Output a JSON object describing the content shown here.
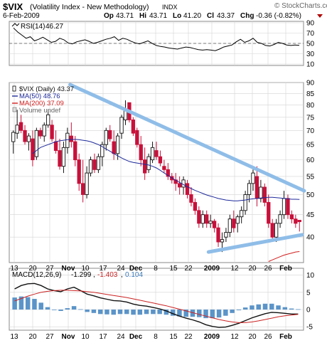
{
  "header": {
    "symbol": "$VIX",
    "name": "(Volatility Index - New Methodology)",
    "exchange": "INDX",
    "date": "6-Feb-2009",
    "op_label": "Op",
    "op": "43.71",
    "hi_label": "Hi",
    "hi": "43.71",
    "lo_label": "Lo",
    "lo": "41.20",
    "cl_label": "Cl",
    "cl": "43.37",
    "chg_label": "Chg",
    "chg": "-0.36 (-0.82%)",
    "brand": "© StockCharts.com"
  },
  "colors": {
    "up": "#111111",
    "down": "#c8103a",
    "ma50": "#1e2a9a",
    "ma200": "#d21c1c",
    "trend": "#8fbde8",
    "macd": "#111111",
    "signal": "#cc2222",
    "hist": "#5b94c8",
    "grid": "#d4d4d4",
    "panel_border": "#888888"
  },
  "rsi": {
    "label": "RSI(14)",
    "value": "46.27",
    "ticks": [
      "90",
      "70",
      "50",
      "30",
      "10"
    ],
    "legend_icon": "rsi-line-icon"
  },
  "price": {
    "legend": [
      {
        "text": "$VIX (Daily) 43.37",
        "color": "#111111",
        "kind": "candle"
      },
      {
        "text": "MA(50) 48.76",
        "color": "#1e2a9a",
        "kind": "line"
      },
      {
        "text": "MA(200) 37.09",
        "color": "#d21c1c",
        "kind": "line"
      },
      {
        "text": "Volume undef",
        "color": "#666666",
        "kind": "box"
      }
    ]
  },
  "macd": {
    "label": "MACD(12,26,9)",
    "macd_value": "-1.299",
    "signal_value": "-1.403",
    "hist_value": "0.104",
    "ticks": [
      "10",
      "5",
      "0",
      "-5"
    ]
  },
  "x_axis": {
    "labels": [
      "13",
      "20",
      "27",
      "Nov",
      "10",
      "17",
      "24",
      "Dec",
      "8",
      "15",
      "22",
      "2009",
      "12",
      "20",
      "26",
      "Feb"
    ]
  },
  "chart_data": {
    "type": "candlestick",
    "title": "$VIX (Volatility Index - New Methodology) INDX",
    "date": "6-Feb-2009",
    "ylim": [
      35,
      90
    ],
    "y_ticks": [
      40,
      45,
      50,
      55,
      60,
      65,
      70,
      75,
      80,
      85,
      90
    ],
    "y_scale": "log",
    "x_labels": [
      "13",
      "20",
      "27",
      "Nov",
      "10",
      "17",
      "24",
      "Dec",
      "8",
      "15",
      "22",
      "2009",
      "12",
      "20",
      "26",
      "Feb"
    ],
    "candles": [
      {
        "o": 66,
        "h": 70,
        "l": 62,
        "c": 69.3
      },
      {
        "o": 69,
        "h": 78,
        "l": 67,
        "c": 72
      },
      {
        "o": 73,
        "h": 76,
        "l": 69,
        "c": 70
      },
      {
        "o": 70,
        "h": 72,
        "l": 65,
        "c": 66
      },
      {
        "o": 66,
        "h": 69,
        "l": 63,
        "c": 68
      },
      {
        "o": 67,
        "h": 70,
        "l": 58,
        "c": 60
      },
      {
        "o": 61,
        "h": 71,
        "l": 60,
        "c": 70
      },
      {
        "o": 70,
        "h": 71,
        "l": 67,
        "c": 68
      },
      {
        "o": 68,
        "h": 73,
        "l": 66,
        "c": 72
      },
      {
        "o": 72,
        "h": 78,
        "l": 71,
        "c": 76
      },
      {
        "o": 72,
        "h": 74,
        "l": 66,
        "c": 67
      },
      {
        "o": 66,
        "h": 70,
        "l": 62,
        "c": 63
      },
      {
        "o": 63,
        "h": 67,
        "l": 57,
        "c": 58
      },
      {
        "o": 58,
        "h": 66,
        "l": 56,
        "c": 64
      },
      {
        "o": 64,
        "h": 71,
        "l": 62,
        "c": 69
      },
      {
        "o": 68,
        "h": 73,
        "l": 64,
        "c": 66
      },
      {
        "o": 66,
        "h": 68,
        "l": 58,
        "c": 60
      },
      {
        "o": 60,
        "h": 62,
        "l": 51,
        "c": 53
      },
      {
        "o": 53,
        "h": 60,
        "l": 48,
        "c": 50
      },
      {
        "o": 50,
        "h": 58,
        "l": 49,
        "c": 56
      },
      {
        "o": 56,
        "h": 61,
        "l": 55,
        "c": 60
      },
      {
        "o": 60,
        "h": 62,
        "l": 56,
        "c": 57
      },
      {
        "o": 57,
        "h": 62,
        "l": 56,
        "c": 61
      },
      {
        "o": 61,
        "h": 66,
        "l": 58,
        "c": 65
      },
      {
        "o": 65,
        "h": 71,
        "l": 63,
        "c": 70
      },
      {
        "o": 70,
        "h": 72,
        "l": 66,
        "c": 67
      },
      {
        "o": 66,
        "h": 70,
        "l": 60,
        "c": 62
      },
      {
        "o": 62,
        "h": 69,
        "l": 60,
        "c": 68
      },
      {
        "o": 69,
        "h": 76,
        "l": 67,
        "c": 75
      },
      {
        "o": 74,
        "h": 82,
        "l": 72,
        "c": 78
      },
      {
        "o": 81,
        "h": 81,
        "l": 73,
        "c": 74
      },
      {
        "o": 74,
        "h": 75,
        "l": 68,
        "c": 69
      },
      {
        "o": 70,
        "h": 71,
        "l": 64,
        "c": 65
      },
      {
        "o": 65,
        "h": 68,
        "l": 58,
        "c": 60
      },
      {
        "o": 60,
        "h": 64,
        "l": 54,
        "c": 56
      },
      {
        "o": 57,
        "h": 62,
        "l": 56,
        "c": 61
      },
      {
        "o": 60,
        "h": 66,
        "l": 59,
        "c": 64
      },
      {
        "o": 63,
        "h": 66,
        "l": 60,
        "c": 61
      },
      {
        "o": 61,
        "h": 63,
        "l": 58,
        "c": 59
      },
      {
        "o": 58,
        "h": 60,
        "l": 56,
        "c": 57
      },
      {
        "o": 57,
        "h": 59,
        "l": 54,
        "c": 55
      },
      {
        "o": 55,
        "h": 56,
        "l": 53,
        "c": 54
      },
      {
        "o": 54,
        "h": 56,
        "l": 51,
        "c": 53
      },
      {
        "o": 53,
        "h": 55,
        "l": 50,
        "c": 52
      },
      {
        "o": 52,
        "h": 55,
        "l": 50,
        "c": 54
      },
      {
        "o": 53,
        "h": 54,
        "l": 49,
        "c": 50
      },
      {
        "o": 50,
        "h": 52,
        "l": 47,
        "c": 48
      },
      {
        "o": 48,
        "h": 49,
        "l": 45,
        "c": 46
      },
      {
        "o": 46,
        "h": 47,
        "l": 42,
        "c": 43
      },
      {
        "o": 43,
        "h": 46,
        "l": 42,
        "c": 45
      },
      {
        "o": 45,
        "h": 46,
        "l": 42,
        "c": 43
      },
      {
        "o": 43,
        "h": 45,
        "l": 42,
        "c": 43.5
      },
      {
        "o": 43.5,
        "h": 44,
        "l": 41,
        "c": 42
      },
      {
        "o": 42,
        "h": 43,
        "l": 38,
        "c": 39
      },
      {
        "o": 39,
        "h": 41,
        "l": 37,
        "c": 39.5
      },
      {
        "o": 40,
        "h": 42,
        "l": 39,
        "c": 41
      },
      {
        "o": 41,
        "h": 45,
        "l": 40,
        "c": 44
      },
      {
        "o": 44,
        "h": 46,
        "l": 41,
        "c": 42
      },
      {
        "o": 43,
        "h": 45,
        "l": 41,
        "c": 44.5
      },
      {
        "o": 44.5,
        "h": 47,
        "l": 43,
        "c": 46
      },
      {
        "o": 46,
        "h": 51,
        "l": 45,
        "c": 50
      },
      {
        "o": 50,
        "h": 54,
        "l": 48,
        "c": 53
      },
      {
        "o": 53,
        "h": 57,
        "l": 51,
        "c": 56
      },
      {
        "o": 55,
        "h": 58,
        "l": 47,
        "c": 49
      },
      {
        "o": 49,
        "h": 54,
        "l": 48,
        "c": 52
      },
      {
        "o": 52,
        "h": 53,
        "l": 47,
        "c": 48
      },
      {
        "o": 48,
        "h": 50,
        "l": 42,
        "c": 43
      },
      {
        "o": 43,
        "h": 44,
        "l": 39,
        "c": 40
      },
      {
        "o": 40,
        "h": 44,
        "l": 39,
        "c": 43
      },
      {
        "o": 43,
        "h": 46,
        "l": 42,
        "c": 45
      },
      {
        "o": 45,
        "h": 51,
        "l": 44,
        "c": 49
      },
      {
        "o": 49,
        "h": 50,
        "l": 44,
        "c": 45
      },
      {
        "o": 45,
        "h": 46,
        "l": 43,
        "c": 44
      },
      {
        "o": 44,
        "h": 45,
        "l": 42,
        "c": 43
      },
      {
        "o": 43.71,
        "h": 43.71,
        "l": 41.2,
        "c": 43.37
      }
    ],
    "ma50": [
      62,
      63,
      64,
      64.5,
      65,
      65.5,
      66,
      66.3,
      66.5,
      66.7,
      66.8,
      66.8,
      66.7,
      66.5,
      66.3,
      66,
      65.5,
      65,
      64.3,
      63.5,
      62.8,
      62,
      61.3,
      60.6,
      60,
      59.5,
      59.2,
      59,
      58.8,
      58.6,
      58.4,
      58,
      57.5,
      56.8,
      56,
      55.3,
      54.6,
      53.9,
      53.3,
      52.7,
      52.1,
      51.6,
      51.1,
      50.7,
      50.3,
      49.9,
      49.6,
      49.3,
      49,
      48.8,
      48.6,
      48.5,
      48.4,
      48.4,
      48.5,
      48.6,
      48.8,
      48.9,
      49,
      49.1,
      49.2,
      49.3,
      49.3,
      49.2,
      49.1,
      49,
      48.9,
      48.8,
      48.8,
      48.76
    ],
    "ma200": [
      29,
      29.3,
      29.7,
      30,
      30.4,
      30.8,
      31.2,
      31.6,
      32,
      32.4,
      32.8,
      33.1,
      33.4,
      33.7,
      34,
      34.3,
      34.6,
      34.9,
      35.2,
      35.5,
      35.8,
      36.1,
      36.4,
      36.6,
      36.8,
      37,
      37.09
    ],
    "resistance_line": {
      "from": [
        0,
        89
      ],
      "to": [
        74,
        51
      ]
    },
    "support_line": {
      "from": [
        49,
        37
      ],
      "to": [
        74,
        40.5
      ]
    },
    "rsi_values": [
      80,
      72,
      66,
      60,
      63,
      55,
      58,
      62,
      57,
      52,
      54,
      60,
      57,
      51,
      49,
      53,
      55,
      57,
      54,
      50,
      52,
      55,
      58,
      60,
      63,
      56,
      60,
      58,
      54,
      51,
      49,
      52,
      55,
      50,
      46,
      44,
      43,
      41,
      40,
      39,
      41,
      43,
      42,
      40,
      38,
      37,
      38,
      37,
      36,
      39,
      43,
      45,
      47,
      53,
      58,
      52,
      55,
      60,
      52,
      50,
      46,
      45,
      48,
      52,
      50,
      47,
      46,
      47,
      46.27
    ],
    "macd_values": [
      6,
      7,
      7.5,
      7.6,
      7,
      6,
      5.5,
      5.2,
      6,
      6.5,
      5.5,
      4.5,
      4,
      3.4,
      3,
      2.6,
      2.5,
      2.2,
      1.6,
      1.2,
      1,
      0.6,
      0.2,
      -0.4,
      -1.2,
      -1.9,
      -2.5,
      -3,
      -3.6,
      -4.4,
      -4.9,
      -5.2,
      -5.1,
      -4.6,
      -4,
      -3.2,
      -2.4,
      -1.8,
      -1.2,
      -0.8,
      -0.9,
      -1.1,
      -1.3,
      -1.299
    ],
    "signal_values": [
      2.5,
      3.2,
      3.9,
      4.5,
      5,
      5.3,
      5.5,
      5.6,
      5.6,
      5.5,
      5.4,
      5.2,
      5,
      4.7,
      4.4,
      4.1,
      3.8,
      3.5,
      3.1,
      2.7,
      2.3,
      1.9,
      1.5,
      1.1,
      0.6,
      0.1,
      -0.4,
      -0.9,
      -1.4,
      -1.9,
      -2.4,
      -2.9,
      -3.3,
      -3.6,
      -3.8,
      -3.8,
      -3.6,
      -3.3,
      -2.9,
      -2.5,
      -2.1,
      -1.8,
      -1.6,
      -1.403
    ],
    "macd_ylim": [
      -6,
      12
    ],
    "macd_y_ticks": [
      -5,
      0,
      5,
      10
    ],
    "rsi_ylim": [
      10,
      90
    ],
    "rsi_y_ticks": [
      10,
      30,
      50,
      70,
      90
    ]
  }
}
